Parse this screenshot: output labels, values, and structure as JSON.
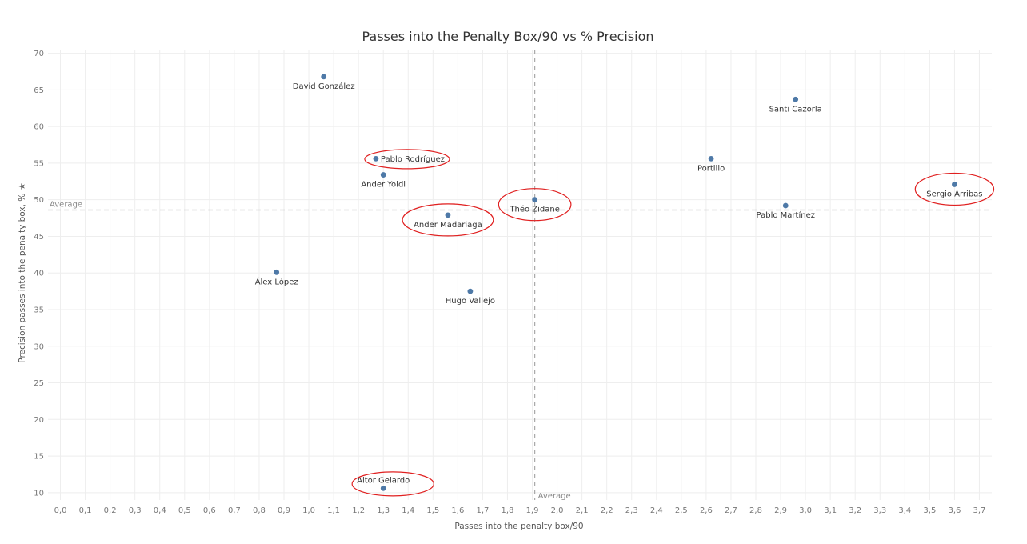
{
  "chart_data": {
    "type": "scatter",
    "title": "Passes into the Penalty Box/90 vs % Precision",
    "xlabel": "Passes into the penalty box/90",
    "ylabel": "Precision passes into the penalty box, %",
    "ylabel_icon": "★",
    "xlim": [
      -0.05,
      3.75
    ],
    "ylim": [
      9,
      70.5
    ],
    "x_ticks": [
      0.0,
      0.1,
      0.2,
      0.3,
      0.4,
      0.5,
      0.6,
      0.7,
      0.8,
      0.9,
      1.0,
      1.1,
      1.2,
      1.3,
      1.4,
      1.5,
      1.6,
      1.7,
      1.8,
      1.9,
      2.0,
      2.1,
      2.2,
      2.3,
      2.4,
      2.5,
      2.6,
      2.7,
      2.8,
      2.9,
      3.0,
      3.1,
      3.2,
      3.3,
      3.4,
      3.5,
      3.6,
      3.7
    ],
    "x_tick_labels": [
      "0,0",
      "0,1",
      "0,2",
      "0,3",
      "0,4",
      "0,5",
      "0,6",
      "0,7",
      "0,8",
      "0,9",
      "1,0",
      "1,1",
      "1,2",
      "1,3",
      "1,4",
      "1,5",
      "1,6",
      "1,7",
      "1,8",
      "1,9",
      "2,0",
      "2,1",
      "2,2",
      "2,3",
      "2,4",
      "2,5",
      "2,6",
      "2,7",
      "2,8",
      "2,9",
      "3,0",
      "3,1",
      "3,2",
      "3,3",
      "3,4",
      "3,5",
      "3,6",
      "3,7"
    ],
    "y_ticks": [
      10,
      15,
      20,
      25,
      30,
      35,
      40,
      45,
      50,
      55,
      60,
      65,
      70
    ],
    "grid": true,
    "point_color": "#4e79a7",
    "highlight_color": "#e02020",
    "reference_lines": {
      "x": {
        "value": 1.91,
        "label": "Average"
      },
      "y": {
        "value": 48.6,
        "label": "Average"
      }
    },
    "points": [
      {
        "name": "David González",
        "x": 1.06,
        "y": 66.8,
        "label_pos": "below",
        "highlighted": false
      },
      {
        "name": "Santi Cazorla",
        "x": 2.96,
        "y": 63.7,
        "label_pos": "below",
        "highlighted": false
      },
      {
        "name": "Pablo Rodríguez",
        "x": 1.27,
        "y": 55.6,
        "label_pos": "right",
        "highlighted": true
      },
      {
        "name": "Portillo",
        "x": 2.62,
        "y": 55.6,
        "label_pos": "below",
        "highlighted": false
      },
      {
        "name": "Ander Yoldi",
        "x": 1.3,
        "y": 53.4,
        "label_pos": "below",
        "highlighted": false
      },
      {
        "name": "Sergio Arribas",
        "x": 3.6,
        "y": 52.1,
        "label_pos": "below",
        "highlighted": true
      },
      {
        "name": "Théo Zidane",
        "x": 1.91,
        "y": 50.0,
        "label_pos": "below",
        "highlighted": true
      },
      {
        "name": "Pablo Martínez",
        "x": 2.92,
        "y": 49.2,
        "label_pos": "below",
        "highlighted": false
      },
      {
        "name": "Ander Madariaga",
        "x": 1.56,
        "y": 47.9,
        "label_pos": "below",
        "highlighted": true
      },
      {
        "name": "Álex López",
        "x": 0.87,
        "y": 40.1,
        "label_pos": "below",
        "highlighted": false
      },
      {
        "name": "Hugo Vallejo",
        "x": 1.65,
        "y": 37.5,
        "label_pos": "below",
        "highlighted": false
      },
      {
        "name": "Aitor Gelardo",
        "x": 1.3,
        "y": 10.6,
        "label_pos": "above",
        "highlighted": true
      }
    ]
  }
}
